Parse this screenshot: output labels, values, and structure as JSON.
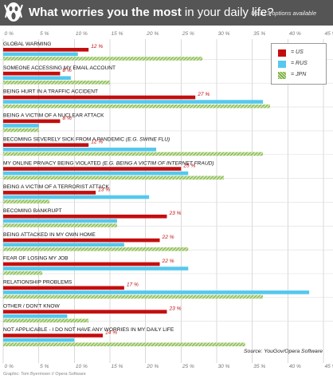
{
  "header": {
    "title_bold": "What worries you the most",
    "title_rest": " in your daily life?",
    "subtitle": "Up to 3 options available"
  },
  "colors": {
    "US": "#c40e0e",
    "RUS": "#55c8ee",
    "JPN": "#8fc04a",
    "header": "#555555"
  },
  "legend": [
    {
      "label": "= US",
      "key": "US"
    },
    {
      "label": "= RUS",
      "key": "RUS"
    },
    {
      "label": "= JPN",
      "key": "JPN"
    }
  ],
  "source": "Source: YouGov/Opera Software",
  "credit": "Graphic: Tom Byermoen // Opera Software",
  "chart_data": {
    "type": "bar",
    "orientation": "horizontal",
    "xlim": [
      0,
      45
    ],
    "xticks": [
      "0 %",
      "5 %",
      "10 %",
      "15 %",
      "20 %",
      "25 %",
      "30 %",
      "35 %",
      "40 %",
      "45 %"
    ],
    "grid": true,
    "legend_position": "top-right",
    "categories": [
      {
        "label": "GLOBAL WARMING",
        "note": ""
      },
      {
        "label": "SOMEONE ACCESSING MY EMAIL ACCOUNT",
        "note": ""
      },
      {
        "label": "BEING HURT IN A TRAFFIC ACCIDENT",
        "note": ""
      },
      {
        "label": "BEING A VICTIM OF A NUCLEAR ATTACK",
        "note": ""
      },
      {
        "label": "BECOMING SEVERELY SICK FROM A PANDEMIC",
        "note": " (E.G. SWINE FLU)"
      },
      {
        "label": "MY ONLINE PRIVACY BEING VIOLATED",
        "note": " (E.G. BEING A VICTIM OF INTERNET FRAUD)"
      },
      {
        "label": "BEING A VICTIM OF A TERRORIST ATTACK",
        "note": ""
      },
      {
        "label": "BECOMING BANKRUPT",
        "note": ""
      },
      {
        "label": "BEING ATTACKED IN MY OWN HOME",
        "note": ""
      },
      {
        "label": "FEAR OF LOSING MY JOB",
        "note": ""
      },
      {
        "label": "RELATIONSHIP PROBLEMS",
        "note": ""
      },
      {
        "label": "OTHER / DON'T KNOW",
        "note": ""
      },
      {
        "label": "NOT APPLICABLE - I DO NOT HAVE ANY WORRIES IN MY DAILY LIFE",
        "note": ""
      }
    ],
    "series": [
      {
        "name": "US",
        "values": [
          12,
          8,
          27,
          8,
          12,
          25,
          13,
          23,
          22,
          22,
          17,
          23,
          14
        ],
        "labels": [
          "12 %",
          "8 %",
          "27 %",
          "8 %",
          "12 %",
          "25 %",
          "13 %",
          "23 %",
          "22 %",
          "22 %",
          "17 %",
          "23 %",
          "14 %"
        ]
      },
      {
        "name": "RUS",
        "values": [
          10.5,
          9.5,
          36.5,
          5,
          21.5,
          26,
          20.5,
          16,
          17,
          26,
          43,
          9,
          10
        ]
      },
      {
        "name": "JPN",
        "values": [
          28,
          15,
          37.5,
          5,
          36.5,
          31,
          6.5,
          16,
          26,
          5.5,
          36.5,
          12,
          34
        ]
      }
    ]
  }
}
